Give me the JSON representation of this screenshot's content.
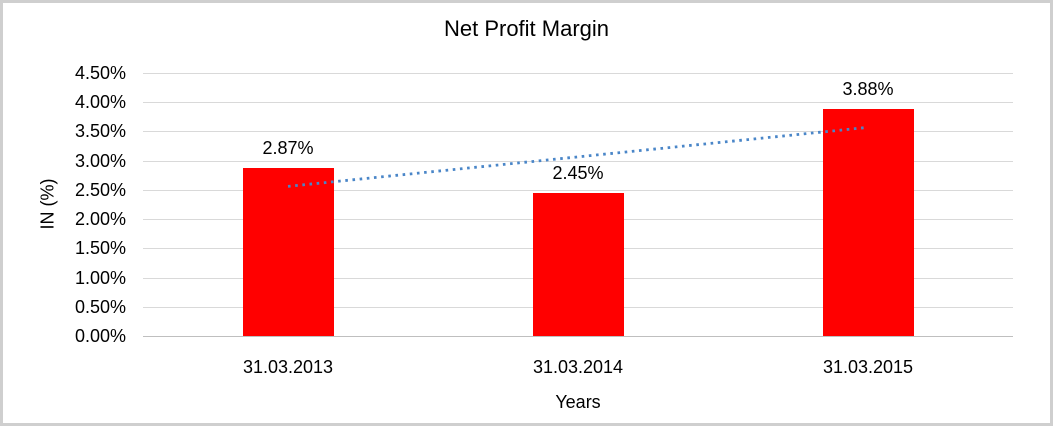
{
  "chart_data": {
    "type": "bar",
    "title": "Net Profit Margin",
    "xlabel": "Years",
    "ylabel": "IN (%)",
    "categories": [
      "31.03.2013",
      "31.03.2014",
      "31.03.2015"
    ],
    "values": [
      2.87,
      2.45,
      3.88
    ],
    "value_labels": [
      "2.87%",
      "2.45%",
      "3.88%"
    ],
    "ylim": [
      0,
      4.5
    ],
    "ytick_step": 0.5,
    "ytick_labels_top_to_bottom": [
      "4.50%",
      "4.00%",
      "3.50%",
      "3.00%",
      "2.50%",
      "2.00%",
      "1.50%",
      "1.00%",
      "0.50%",
      "0.00%"
    ],
    "grid": true,
    "legend": "none",
    "bar_color": "#ff0000",
    "trendline": {
      "type": "linear",
      "style": "dotted",
      "color": "#4a86c8",
      "start_value": 2.56,
      "end_value": 3.57
    }
  },
  "colors": {
    "background": "#ffffff",
    "frame_border": "#cfcfcf",
    "gridline": "#d9d9d9",
    "axis_line": "#bfbfbf",
    "text": "#000000"
  }
}
